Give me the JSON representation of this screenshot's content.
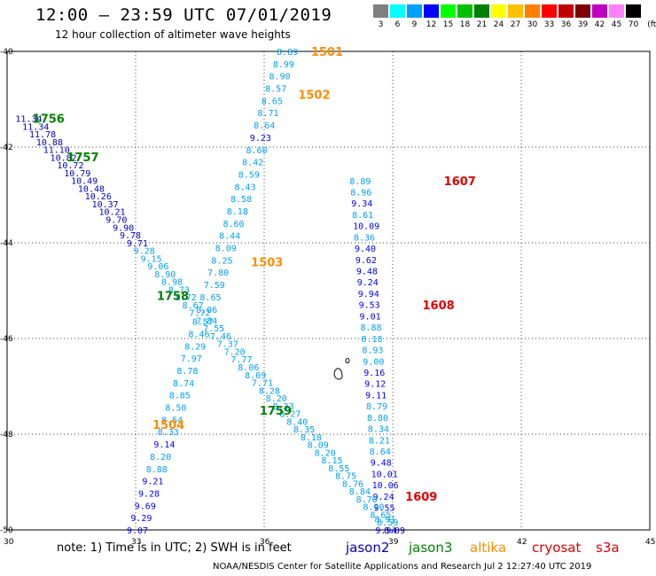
{
  "header": {
    "title": "12:00 – 23:59 UTC 07/01/2019",
    "subtitle": "12 hour collection of altimeter wave heights"
  },
  "legend": {
    "unit": "(ft)",
    "bins": [
      {
        "label": "3",
        "color": "#808080"
      },
      {
        "label": "6",
        "color": "#00ffff"
      },
      {
        "label": "9",
        "color": "#00a0ff"
      },
      {
        "label": "12",
        "color": "#0000ff"
      },
      {
        "label": "15",
        "color": "#00ff00"
      },
      {
        "label": "18",
        "color": "#00c000"
      },
      {
        "label": "21",
        "color": "#008000"
      },
      {
        "label": "24",
        "color": "#ffff00"
      },
      {
        "label": "27",
        "color": "#ffc000"
      },
      {
        "label": "30",
        "color": "#ff8000"
      },
      {
        "label": "33",
        "color": "#ff0000"
      },
      {
        "label": "36",
        "color": "#c00000"
      },
      {
        "label": "39",
        "color": "#800000"
      },
      {
        "label": "42",
        "color": "#c000c0"
      },
      {
        "label": "45",
        "color": "#ff80ff"
      },
      {
        "label": "70",
        "color": "#000000"
      }
    ]
  },
  "map": {
    "lon_ticks": [
      30,
      33,
      36,
      39,
      42,
      45
    ],
    "lat_ticks": [
      -40,
      -42,
      -44,
      -46,
      -48,
      -50
    ],
    "lon_labels": [
      "30",
      "33",
      "36",
      "39",
      "42",
      "45"
    ],
    "lat_labels": [
      "-40",
      "-42",
      "-44",
      "-46",
      "-48",
      "-50"
    ],
    "lon_range": [
      30,
      45
    ],
    "lat_range": [
      -50,
      -40
    ]
  },
  "satellite_colors": {
    "jason2": "#0000c0",
    "jason3": "#008000",
    "altika": "#ff8c00",
    "cryosat": "#e00000",
    "s3a": "#e00000"
  },
  "tracks": [
    {
      "name": "altika",
      "lon_start": 36.5,
      "lat_start": -40.0,
      "lon_end": 33.0,
      "lat_end": -50.0,
      "values": [
        "8.89",
        "8.99",
        "8.90",
        "8.57",
        "8.65",
        "8.71",
        "8.64",
        "9.23",
        "8.60",
        "8.42",
        "8.59",
        "8.43",
        "8.58",
        "8.18",
        "8.60",
        "8.44",
        "8.09",
        "8.25",
        "7.80",
        "7.59",
        "8.65",
        "8.06",
        "8.57",
        "8.46",
        "8.29",
        "7.97",
        "8.78",
        "8.74",
        "8.85",
        "8.50",
        "8.54",
        "8.33",
        "9.14",
        "8.20",
        "8.88",
        "9.21",
        "9.28",
        "9.69",
        "9.29",
        "9.07"
      ],
      "colors": [
        "#00a0ff",
        "#00a0ff",
        "#00a0ff",
        "#00a0ff",
        "#00a0ff",
        "#00a0ff",
        "#00a0ff",
        "#0000ff",
        "#00a0ff",
        "#00a0ff",
        "#00a0ff",
        "#00a0ff",
        "#00a0ff",
        "#00a0ff",
        "#00a0ff",
        "#00a0ff",
        "#00a0ff",
        "#00a0ff",
        "#00a0ff",
        "#00a0ff",
        "#00a0ff",
        "#00a0ff",
        "#00a0ff",
        "#00a0ff",
        "#00a0ff",
        "#00a0ff",
        "#00a0ff",
        "#00a0ff",
        "#00a0ff",
        "#00a0ff",
        "#00a0ff",
        "#00a0ff",
        "#0000ff",
        "#00a0ff",
        "#00a0ff",
        "#0000ff",
        "#0000ff",
        "#0000ff",
        "#0000ff",
        "#0000ff"
      ]
    },
    {
      "name": "cryosat",
      "lon_start": 38.2,
      "lat_start": -42.7,
      "lon_end": 38.8,
      "lat_end": -50.0,
      "values": [
        "8.89",
        "8.96",
        "9.34",
        "8.61",
        "10.09",
        "8.36",
        "9.40",
        "9.62",
        "9.48",
        "9.24",
        "9.94",
        "9.53",
        "9.01",
        "8.88",
        "8.18",
        "8.93",
        "9.00",
        "9.16",
        "9.12",
        "9.11",
        "8.79",
        "8.80",
        "8.34",
        "8.21",
        "8.64",
        "9.48",
        "10.01",
        "10.06",
        "9.24",
        "9.55",
        "8.91",
        "9.94"
      ],
      "colors": [
        "#00a0ff",
        "#00a0ff",
        "#0000ff",
        "#00a0ff",
        "#0000ff",
        "#00a0ff",
        "#0000ff",
        "#0000ff",
        "#0000ff",
        "#0000ff",
        "#0000ff",
        "#0000ff",
        "#0000ff",
        "#00a0ff",
        "#00a0ff",
        "#00a0ff",
        "#00a0ff",
        "#0000ff",
        "#0000ff",
        "#0000ff",
        "#00a0ff",
        "#00a0ff",
        "#00a0ff",
        "#00a0ff",
        "#00a0ff",
        "#0000ff",
        "#0000ff",
        "#0000ff",
        "#0000ff",
        "#0000ff",
        "#00a0ff",
        "#0000ff"
      ]
    },
    {
      "name": "jason",
      "lon_start": 30.4,
      "lat_start": -41.4,
      "lon_end": 39.0,
      "lat_end": -50.0,
      "values": [
        "11.34",
        "11.34",
        "11.78",
        "10.88",
        "11.10",
        "10.82",
        "10.72",
        "10.79",
        "10.49",
        "10.48",
        "10.26",
        "10.37",
        "10.21",
        "9.70",
        "9.90",
        "9.78",
        "9.71",
        "9.28",
        "9.15",
        "9.06",
        "8.90",
        "8.98",
        "8.73",
        "8.72",
        "8.67",
        "7.72",
        "7.84",
        "7.55",
        "7.46",
        "7.37",
        "7.20",
        "7.77",
        "8.06",
        "8.09",
        "7.71",
        "8.28",
        "8.20",
        "8.33",
        "8.27",
        "8.40",
        "8.35",
        "8.18",
        "8.09",
        "8.20",
        "8.15",
        "8.55",
        "8.75",
        "8.76",
        "8.84",
        "8.70",
        "8.90",
        "8.65",
        "8.59",
        "8.09"
      ],
      "colors": [
        "#0000c0",
        "#0000c0",
        "#0000c0",
        "#0000c0",
        "#0000c0",
        "#0000c0",
        "#0000c0",
        "#0000c0",
        "#0000c0",
        "#0000c0",
        "#0000c0",
        "#0000c0",
        "#0000c0",
        "#0000c0",
        "#0000c0",
        "#0000c0",
        "#0000c0",
        "#00a0ff",
        "#00a0ff",
        "#00a0ff",
        "#00a0ff",
        "#00a0ff",
        "#00a0ff",
        "#00a0ff",
        "#00a0ff",
        "#00a0ff",
        "#00a0ff",
        "#00a0ff",
        "#00a0ff",
        "#00a0ff",
        "#00a0ff",
        "#00a0ff",
        "#00a0ff",
        "#00a0ff",
        "#00a0ff",
        "#00a0ff",
        "#00a0ff",
        "#00a0ff",
        "#00a0ff",
        "#00a0ff",
        "#00a0ff",
        "#00a0ff",
        "#00a0ff",
        "#00a0ff",
        "#00a0ff",
        "#00a0ff",
        "#00a0ff",
        "#00a0ff",
        "#00a0ff",
        "#00a0ff",
        "#00a0ff",
        "#00a0ff",
        "#00a0ff",
        "#0000c0"
      ]
    }
  ],
  "time_labels": [
    {
      "text": "1501",
      "lon": 37.3,
      "lat": -40.0,
      "color": "#ff8c00"
    },
    {
      "text": "1502",
      "lon": 37.0,
      "lat": -40.9,
      "color": "#ff8c00"
    },
    {
      "text": "1503",
      "lon": 35.9,
      "lat": -44.4,
      "color": "#ff8c00"
    },
    {
      "text": "1504",
      "lon": 33.6,
      "lat": -47.8,
      "color": "#ff8c00"
    },
    {
      "text": "1607",
      "lon": 40.4,
      "lat": -42.7,
      "color": "#e00000"
    },
    {
      "text": "1608",
      "lon": 39.9,
      "lat": -45.3,
      "color": "#e00000"
    },
    {
      "text": "1609",
      "lon": 39.5,
      "lat": -49.3,
      "color": "#e00000"
    },
    {
      "text": "1756",
      "lon": 30.8,
      "lat": -41.4,
      "color": "#008000"
    },
    {
      "text": "1757",
      "lon": 31.6,
      "lat": -42.2,
      "color": "#008000"
    },
    {
      "text": "1758",
      "lon": 33.7,
      "lat": -45.1,
      "color": "#008000"
    },
    {
      "text": "1759",
      "lon": 36.1,
      "lat": -47.5,
      "color": "#008000"
    }
  ],
  "notes": {
    "note": "note:  1) Time is in UTC; 2) SWH is in feet",
    "sat1": "jason2",
    "sat2": "jason3",
    "sat3": "altika",
    "sat4": "cryosat",
    "sat5": "s3a"
  },
  "credit": "NOAA/NESDIS Center for Satellite Applications and Research    Jul  2 12:27:40 UTC 2019"
}
